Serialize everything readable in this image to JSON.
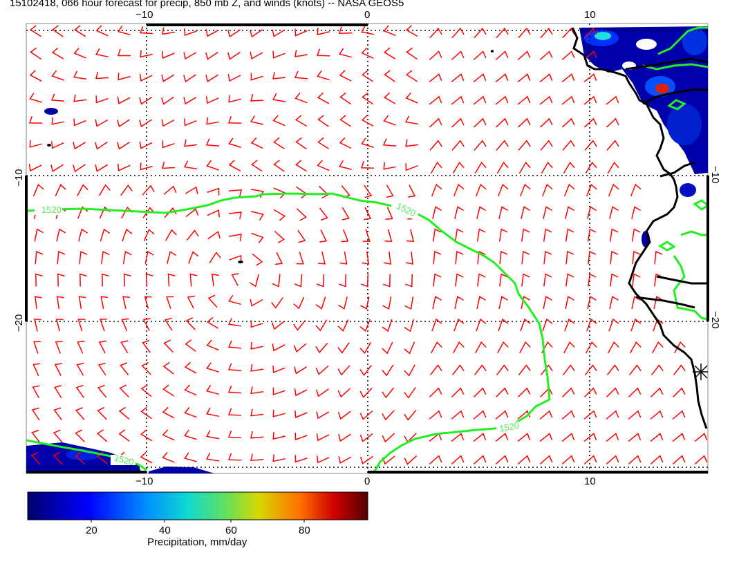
{
  "title": "15102418, 066 hour forecast for precip, 850 mb Z, and winds (knots) -- NASA GEOS5",
  "axes": {
    "lon_ticks": [
      "−10",
      "0",
      "10"
    ],
    "lat_ticks": [
      "−10",
      "−20"
    ]
  },
  "contour_labels": [
    "1520",
    "1520",
    "1520",
    "1520"
  ],
  "colorbar": {
    "ticks": [
      "20",
      "40",
      "60",
      "80"
    ],
    "label": "Precipitation, mm/day",
    "colors": [
      "#00008b",
      "#0000ff",
      "#0080ff",
      "#00e0e0",
      "#40e060",
      "#c8d000",
      "#ff8000",
      "#d00000",
      "#600000"
    ]
  },
  "colors": {
    "wind_barbs": "#ff0000",
    "contour": "#00ff00",
    "coastline": "#000000",
    "precip_low": "#0000aa"
  },
  "icons": [
    "star-marker-icon"
  ]
}
